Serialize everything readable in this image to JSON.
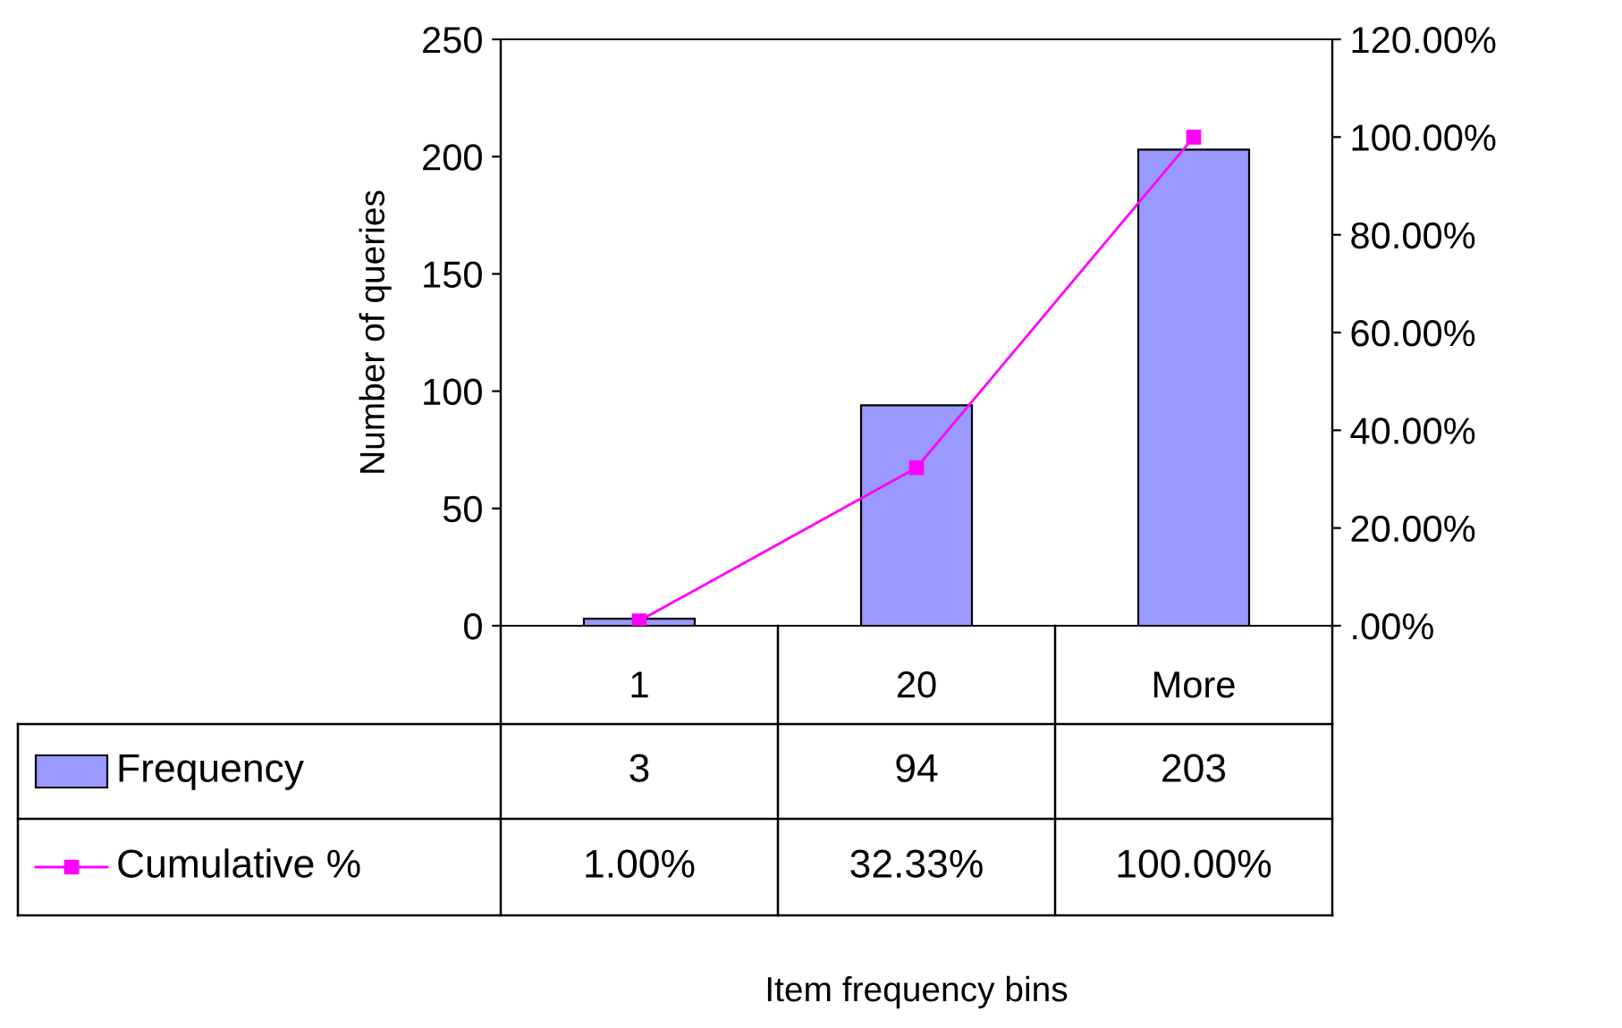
{
  "chart_data": {
    "type": "bar",
    "annotations": [
      "Item frequency bins"
    ],
    "ylabel": "Number of queries",
    "categories": [
      "1",
      "20",
      "More"
    ],
    "series": [
      {
        "name": "Frequency",
        "color": "#9999ff",
        "values": [
          3,
          94,
          203
        ],
        "value_labels": [
          "3",
          "94",
          "203"
        ]
      },
      {
        "name": "Cumulative %",
        "type": "line",
        "axis": "y2",
        "color": "#ff00ff",
        "marker": "square",
        "values": [
          1.0,
          32.33,
          100.0
        ],
        "value_labels": [
          "1.00%",
          "32.33%",
          "100.00%"
        ]
      }
    ],
    "ylim": [
      0,
      250
    ],
    "yticks": [
      0,
      50,
      100,
      150,
      200,
      250
    ],
    "y2lim": [
      0,
      120
    ],
    "y2ticks": [
      {
        "value": 0,
        "label": ".00%"
      },
      {
        "value": 20,
        "label": "20.00%"
      },
      {
        "value": 40,
        "label": "40.00%"
      },
      {
        "value": 60,
        "label": "60.00%"
      },
      {
        "value": 80,
        "label": "80.00%"
      },
      {
        "value": 100,
        "label": "100.00%"
      },
      {
        "value": 120,
        "label": "120.00%"
      }
    ],
    "grid": false,
    "legend": "bottom"
  }
}
